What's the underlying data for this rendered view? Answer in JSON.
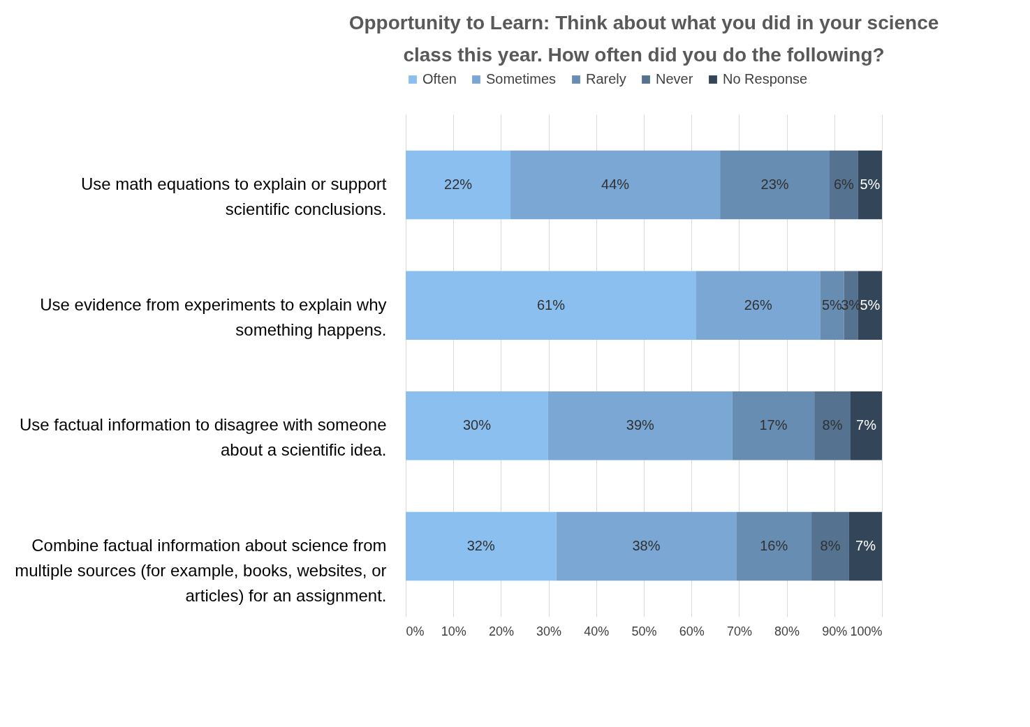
{
  "chart_data": {
    "type": "bar",
    "orientation": "horizontal",
    "stacked": true,
    "title": "Opportunity to Learn: Think about what you did in your science class this year. How often did you do the following?",
    "categories": [
      "Use math equations to explain or support scientific conclusions.",
      "Use evidence from experiments to explain why something happens.",
      "Use factual information to disagree with someone about a scientific idea.",
      "Combine factual information about science from multiple sources (for example, books, websites, or articles) for an assignment."
    ],
    "series": [
      {
        "name": "Often",
        "color": "#8bbfef",
        "values": [
          22,
          61,
          29.9,
          31.6
        ],
        "value_labels": [
          "22%",
          "61%",
          "30%",
          "32%"
        ]
      },
      {
        "name": "Sometimes",
        "color": "#7aa7d4",
        "values": [
          44,
          26,
          38.7,
          37.8
        ],
        "value_labels": [
          "44%",
          "26%",
          "39%",
          "38%"
        ]
      },
      {
        "name": "Rarely",
        "color": "#678db3",
        "values": [
          23,
          5,
          17.2,
          15.8
        ],
        "value_labels": [
          "23%",
          "5%",
          "17%",
          "16%"
        ]
      },
      {
        "name": "Never",
        "color": "#557291",
        "values": [
          6,
          3,
          7.6,
          7.9
        ],
        "value_labels": [
          "6%",
          "3%",
          "8%",
          "8%"
        ]
      },
      {
        "name": "No Response",
        "color": "#334559",
        "values": [
          5,
          5,
          6.6,
          6.9
        ],
        "value_labels": [
          "5%",
          "5%",
          "7%",
          "7%"
        ]
      }
    ],
    "xlim": [
      0,
      100
    ],
    "xticks": [
      {
        "value": 0,
        "label": "0%"
      },
      {
        "value": 10,
        "label": "10%"
      },
      {
        "value": 20,
        "label": "20%"
      },
      {
        "value": 30,
        "label": "30%"
      },
      {
        "value": 40,
        "label": "40%"
      },
      {
        "value": 50,
        "label": "50%"
      },
      {
        "value": 60,
        "label": "60%"
      },
      {
        "value": 70,
        "label": "70%"
      },
      {
        "value": 80,
        "label": "80%"
      },
      {
        "value": 90,
        "label": "90%"
      },
      {
        "value": 100,
        "label": "100%"
      }
    ],
    "grid": "x",
    "legend": "top"
  }
}
